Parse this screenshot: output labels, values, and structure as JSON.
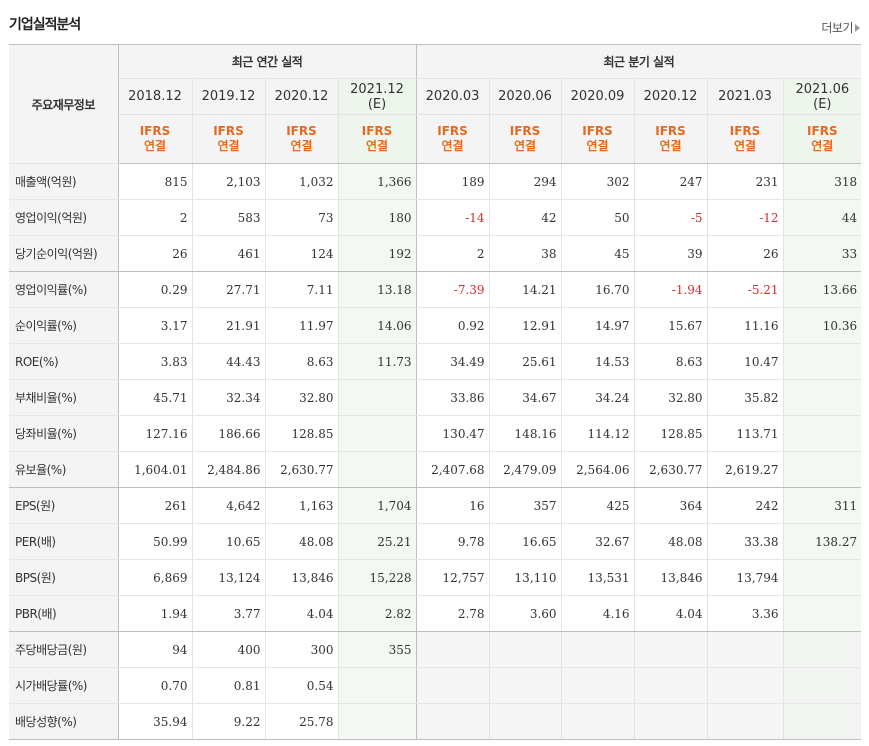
{
  "page": {
    "title": "기업실적분석",
    "more_label": "더보기"
  },
  "table": {
    "row_header_label": "주요재무정보",
    "annual_group_label": "최근 연간 실적",
    "quarter_group_label": "최근 분기 실적",
    "periods": [
      {
        "date": "2018.12",
        "est": "",
        "std": "IFRS",
        "scope": "연결"
      },
      {
        "date": "2019.12",
        "est": "",
        "std": "IFRS",
        "scope": "연결"
      },
      {
        "date": "2020.12",
        "est": "",
        "std": "IFRS",
        "scope": "연결"
      },
      {
        "date": "2021.12",
        "est": "(E)",
        "std": "IFRS",
        "scope": "연결"
      },
      {
        "date": "2020.03",
        "est": "",
        "std": "IFRS",
        "scope": "연결"
      },
      {
        "date": "2020.06",
        "est": "",
        "std": "IFRS",
        "scope": "연결"
      },
      {
        "date": "2020.09",
        "est": "",
        "std": "IFRS",
        "scope": "연결"
      },
      {
        "date": "2020.12",
        "est": "",
        "std": "IFRS",
        "scope": "연결"
      },
      {
        "date": "2021.03",
        "est": "",
        "std": "IFRS",
        "scope": "연결"
      },
      {
        "date": "2021.06",
        "est": "(E)",
        "std": "IFRS",
        "scope": "연결"
      }
    ],
    "rows": [
      {
        "label": "매출액(억원)",
        "values": [
          "815",
          "2,103",
          "1,032",
          "1,366",
          "189",
          "294",
          "302",
          "247",
          "231",
          "318"
        ]
      },
      {
        "label": "영업이익(억원)",
        "values": [
          "2",
          "583",
          "73",
          "180",
          "-14",
          "42",
          "50",
          "-5",
          "-12",
          "44"
        ]
      },
      {
        "label": "당기순이익(억원)",
        "values": [
          "26",
          "461",
          "124",
          "192",
          "2",
          "38",
          "45",
          "39",
          "26",
          "33"
        ]
      },
      {
        "label": "영업이익률(%)",
        "values": [
          "0.29",
          "27.71",
          "7.11",
          "13.18",
          "-7.39",
          "14.21",
          "16.70",
          "-1.94",
          "-5.21",
          "13.66"
        ]
      },
      {
        "label": "순이익률(%)",
        "values": [
          "3.17",
          "21.91",
          "11.97",
          "14.06",
          "0.92",
          "12.91",
          "14.97",
          "15.67",
          "11.16",
          "10.36"
        ]
      },
      {
        "label": "ROE(%)",
        "values": [
          "3.83",
          "44.43",
          "8.63",
          "11.73",
          "34.49",
          "25.61",
          "14.53",
          "8.63",
          "10.47",
          ""
        ]
      },
      {
        "label": "부채비율(%)",
        "values": [
          "45.71",
          "32.34",
          "32.80",
          "",
          "33.86",
          "34.67",
          "34.24",
          "32.80",
          "35.82",
          ""
        ]
      },
      {
        "label": "당좌비율(%)",
        "values": [
          "127.16",
          "186.66",
          "128.85",
          "",
          "130.47",
          "148.16",
          "114.12",
          "128.85",
          "113.71",
          ""
        ]
      },
      {
        "label": "유보율(%)",
        "values": [
          "1,604.01",
          "2,484.86",
          "2,630.77",
          "",
          "2,407.68",
          "2,479.09",
          "2,564.06",
          "2,630.77",
          "2,619.27",
          ""
        ]
      },
      {
        "label": "EPS(원)",
        "values": [
          "261",
          "4,642",
          "1,163",
          "1,704",
          "16",
          "357",
          "425",
          "364",
          "242",
          "311"
        ]
      },
      {
        "label": "PER(배)",
        "values": [
          "50.99",
          "10.65",
          "48.08",
          "25.21",
          "9.78",
          "16.65",
          "32.67",
          "48.08",
          "33.38",
          "138.27"
        ]
      },
      {
        "label": "BPS(원)",
        "values": [
          "6,869",
          "13,124",
          "13,846",
          "15,228",
          "12,757",
          "13,110",
          "13,531",
          "13,846",
          "13,794",
          ""
        ]
      },
      {
        "label": "PBR(배)",
        "values": [
          "1.94",
          "3.77",
          "4.04",
          "2.82",
          "2.78",
          "3.60",
          "4.16",
          "4.04",
          "3.36",
          ""
        ]
      },
      {
        "label": "주당배당금(원)",
        "values": [
          "94",
          "400",
          "300",
          "355",
          "",
          "",
          "",
          "",
          "",
          ""
        ]
      },
      {
        "label": "시가배당률(%)",
        "values": [
          "0.70",
          "0.81",
          "0.54",
          "",
          "",
          "",
          "",
          "",
          "",
          ""
        ]
      },
      {
        "label": "배당성향(%)",
        "values": [
          "35.94",
          "9.22",
          "25.78",
          "",
          "",
          "",
          "",
          "",
          "",
          ""
        ]
      }
    ],
    "negative_color": "#d62d2d",
    "ifrs_color": "#e56a1f"
  }
}
